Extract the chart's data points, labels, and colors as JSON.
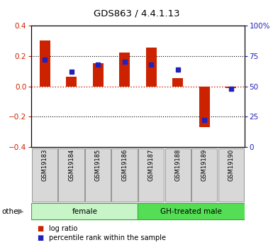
{
  "title": "GDS863 / 4.4.1.13",
  "samples": [
    "GSM19183",
    "GSM19184",
    "GSM19185",
    "GSM19186",
    "GSM19187",
    "GSM19188",
    "GSM19189",
    "GSM19190"
  ],
  "log_ratio": [
    0.305,
    0.065,
    0.155,
    0.225,
    0.255,
    0.055,
    -0.27,
    -0.01
  ],
  "percentile_rank": [
    72,
    62,
    68,
    70,
    68,
    64,
    22,
    48
  ],
  "ylim_left": [
    -0.4,
    0.4
  ],
  "ylim_right": [
    0,
    100
  ],
  "groups": [
    {
      "label": "female",
      "start": 0,
      "end": 4,
      "color": "#c8f5c8"
    },
    {
      "label": "GH-treated male",
      "start": 4,
      "end": 8,
      "color": "#55dd55"
    }
  ],
  "bar_color": "#cc2200",
  "square_color": "#2222bb",
  "tick_color_left": "#cc2200",
  "tick_color_right": "#2222bb",
  "other_label": "other",
  "legend_log_ratio": "log ratio",
  "legend_percentile": "percentile rank within the sample"
}
